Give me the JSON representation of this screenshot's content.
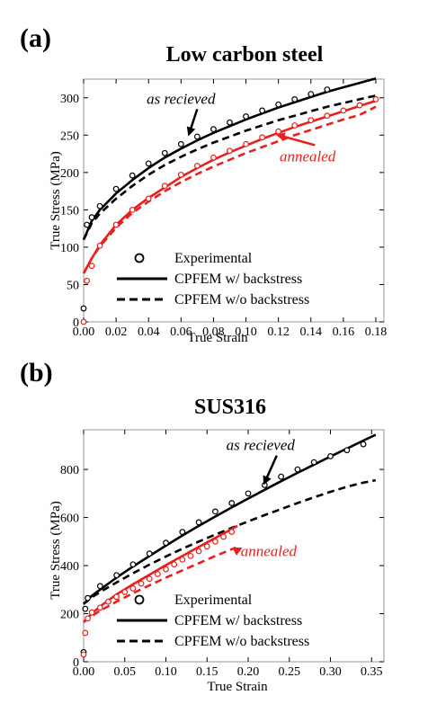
{
  "chart_data": [
    {
      "type": "line",
      "panel_label": "(a)",
      "title": "Low carbon steel",
      "xlabel": "True Strain",
      "ylabel": "True Stress (MPa)",
      "xlim": [
        0,
        0.185
      ],
      "ylim": [
        0,
        325
      ],
      "x_ticks": [
        0,
        0.02,
        0.04,
        0.06,
        0.08,
        0.1,
        0.12,
        0.14,
        0.16,
        0.18
      ],
      "x_tick_labels": [
        "0.00",
        "0.02",
        "0.04",
        "0.06",
        "0.08",
        "0.10",
        "0.12",
        "0.14",
        "0.16",
        "0.18"
      ],
      "y_ticks": [
        0,
        50,
        100,
        150,
        200,
        250,
        300
      ],
      "y_tick_labels": [
        "0",
        "50",
        "100",
        "150",
        "200",
        "250",
        "300"
      ],
      "colors": {
        "as_received": "#000000",
        "annealed": "#e8201e"
      },
      "series": [
        {
          "name": "Experimental",
          "group": "as received",
          "style": "circle",
          "color": "#000000",
          "x": [
            0,
            0.002,
            0.005,
            0.01,
            0.02,
            0.03,
            0.04,
            0.05,
            0.06,
            0.07,
            0.08,
            0.09,
            0.1,
            0.11,
            0.12,
            0.13,
            0.14,
            0.15
          ],
          "y": [
            18,
            130,
            140,
            155,
            178,
            196,
            212,
            226,
            238,
            248,
            258,
            267,
            275,
            283,
            291,
            298,
            305,
            311
          ]
        },
        {
          "name": "CPFEM w/ backstress",
          "group": "as received",
          "style": "solid",
          "color": "#000000",
          "x": [
            0,
            0.005,
            0.01,
            0.02,
            0.03,
            0.04,
            0.05,
            0.06,
            0.07,
            0.08,
            0.09,
            0.1,
            0.11,
            0.12,
            0.13,
            0.14,
            0.15,
            0.16,
            0.17,
            0.18
          ],
          "y": [
            110,
            135,
            150,
            172,
            190,
            206,
            220,
            232,
            243,
            253,
            262,
            271,
            279,
            287,
            294,
            301,
            308,
            314,
            320,
            326
          ]
        },
        {
          "name": "CPFEM w/o backstress",
          "group": "as received",
          "style": "dashed",
          "color": "#000000",
          "x": [
            0,
            0.005,
            0.01,
            0.02,
            0.03,
            0.04,
            0.05,
            0.06,
            0.07,
            0.08,
            0.09,
            0.1,
            0.11,
            0.12,
            0.13,
            0.14,
            0.15,
            0.16,
            0.17,
            0.18
          ],
          "y": [
            110,
            132,
            145,
            165,
            182,
            197,
            210,
            221,
            231,
            240,
            248,
            256,
            263,
            270,
            276,
            282,
            288,
            293,
            298,
            303
          ]
        },
        {
          "name": "Experimental",
          "group": "annealed",
          "style": "circle",
          "color": "#e8201e",
          "x": [
            0,
            0.002,
            0.005,
            0.01,
            0.02,
            0.03,
            0.04,
            0.05,
            0.06,
            0.07,
            0.08,
            0.09,
            0.1,
            0.11,
            0.12,
            0.13,
            0.14,
            0.15,
            0.16,
            0.17,
            0.18
          ],
          "y": [
            0,
            55,
            75,
            102,
            130,
            150,
            165,
            182,
            197,
            209,
            220,
            229,
            238,
            247,
            255,
            263,
            270,
            276,
            283,
            290,
            298
          ]
        },
        {
          "name": "CPFEM w/ backstress",
          "group": "annealed",
          "style": "solid",
          "color": "#e8201e",
          "x": [
            0,
            0.005,
            0.01,
            0.02,
            0.03,
            0.04,
            0.05,
            0.06,
            0.07,
            0.08,
            0.09,
            0.1,
            0.11,
            0.12,
            0.13,
            0.14,
            0.15,
            0.16,
            0.17,
            0.18
          ],
          "y": [
            65,
            85,
            103,
            130,
            150,
            166,
            180,
            194,
            206,
            217,
            227,
            236,
            245,
            253,
            261,
            268,
            275,
            282,
            289,
            296
          ]
        },
        {
          "name": "CPFEM w/o backstress",
          "group": "annealed",
          "style": "dashed",
          "color": "#e8201e",
          "x": [
            0,
            0.005,
            0.01,
            0.02,
            0.03,
            0.04,
            0.05,
            0.06,
            0.07,
            0.08,
            0.09,
            0.1,
            0.11,
            0.12,
            0.13,
            0.14,
            0.15,
            0.16,
            0.17,
            0.18
          ],
          "y": [
            65,
            85,
            101,
            126,
            146,
            161,
            175,
            187,
            198,
            208,
            217,
            226,
            234,
            242,
            250,
            257,
            264,
            271,
            277,
            288
          ]
        }
      ],
      "annotations": [
        {
          "text": "as recieved",
          "color": "#000000",
          "x": 0.06,
          "y": 292,
          "arrow_to": [
            0.065,
            252
          ]
        },
        {
          "text": "annealed",
          "color": "#e8201e",
          "x": 0.138,
          "y": 215,
          "arrow_to": [
            0.12,
            250
          ]
        }
      ],
      "legend": {
        "position": "bottom-right",
        "entries": [
          {
            "label": "Experimental",
            "style": "circle"
          },
          {
            "label": "CPFEM w/ backstress",
            "style": "solid"
          },
          {
            "label": "CPFEM w/o backstress",
            "style": "dashed"
          }
        ]
      }
    },
    {
      "type": "line",
      "panel_label": "(b)",
      "title": "SUS316",
      "xlabel": "True Strain",
      "ylabel": "True Stress (MPa)",
      "xlim": [
        0,
        0.365
      ],
      "ylim": [
        0,
        965
      ],
      "x_ticks": [
        0,
        0.05,
        0.1,
        0.15,
        0.2,
        0.25,
        0.3,
        0.35
      ],
      "x_tick_labels": [
        "0.00",
        "0.05",
        "0.10",
        "0.15",
        "0.20",
        "0.25",
        "0.30",
        "0.35"
      ],
      "y_ticks": [
        0,
        200,
        400,
        600,
        800
      ],
      "y_tick_labels": [
        "0",
        "200",
        "400",
        "600",
        "800"
      ],
      "colors": {
        "as_received": "#000000",
        "annealed": "#e8201e"
      },
      "series": [
        {
          "name": "Experimental",
          "group": "as received",
          "style": "circle",
          "color": "#000000",
          "x": [
            0,
            0.002,
            0.005,
            0.02,
            0.04,
            0.06,
            0.08,
            0.1,
            0.12,
            0.14,
            0.16,
            0.18,
            0.2,
            0.22,
            0.24,
            0.26,
            0.28,
            0.3,
            0.32,
            0.34
          ],
          "y": [
            40,
            220,
            265,
            315,
            360,
            405,
            450,
            495,
            540,
            580,
            625,
            660,
            700,
            735,
            770,
            800,
            830,
            855,
            880,
            905
          ]
        },
        {
          "name": "CPFEM w/ backstress",
          "group": "as received",
          "style": "solid",
          "color": "#000000",
          "x": [
            0,
            0.01,
            0.02,
            0.04,
            0.06,
            0.08,
            0.1,
            0.12,
            0.14,
            0.16,
            0.18,
            0.2,
            0.22,
            0.24,
            0.26,
            0.28,
            0.3,
            0.32,
            0.34,
            0.355
          ],
          "y": [
            240,
            275,
            300,
            350,
            396,
            440,
            483,
            525,
            565,
            604,
            642,
            679,
            715,
            751,
            786,
            820,
            854,
            887,
            920,
            944
          ]
        },
        {
          "name": "CPFEM w/o backstress",
          "group": "as received",
          "style": "dashed",
          "color": "#000000",
          "x": [
            0,
            0.01,
            0.02,
            0.04,
            0.06,
            0.08,
            0.1,
            0.12,
            0.14,
            0.16,
            0.18,
            0.2,
            0.22,
            0.24,
            0.26,
            0.28,
            0.3,
            0.32,
            0.34,
            0.355
          ],
          "y": [
            240,
            268,
            290,
            330,
            368,
            404,
            438,
            470,
            500,
            529,
            557,
            584,
            610,
            635,
            660,
            684,
            707,
            728,
            745,
            755
          ]
        },
        {
          "name": "Experimental",
          "group": "annealed",
          "style": "circle",
          "color": "#e8201e",
          "x": [
            0,
            0.002,
            0.005,
            0.01,
            0.02,
            0.03,
            0.04,
            0.05,
            0.06,
            0.07,
            0.08,
            0.09,
            0.1,
            0.11,
            0.12,
            0.13,
            0.14,
            0.15,
            0.16,
            0.17,
            0.18
          ],
          "y": [
            30,
            120,
            180,
            205,
            225,
            250,
            270,
            290,
            305,
            325,
            345,
            365,
            385,
            405,
            425,
            440,
            460,
            480,
            500,
            520,
            540
          ]
        },
        {
          "name": "CPFEM w/ backstress",
          "group": "annealed",
          "style": "solid",
          "color": "#e8201e",
          "x": [
            0,
            0.01,
            0.02,
            0.04,
            0.06,
            0.08,
            0.1,
            0.12,
            0.14,
            0.16,
            0.18,
            0.187
          ],
          "y": [
            165,
            200,
            230,
            280,
            322,
            362,
            402,
            440,
            478,
            515,
            552,
            565
          ]
        },
        {
          "name": "CPFEM w/o backstress",
          "group": "annealed",
          "style": "dashed",
          "color": "#e8201e",
          "x": [
            0,
            0.01,
            0.02,
            0.04,
            0.06,
            0.08,
            0.1,
            0.12,
            0.14,
            0.16,
            0.18,
            0.185
          ],
          "y": [
            165,
            190,
            212,
            250,
            285,
            318,
            350,
            380,
            410,
            440,
            468,
            475
          ]
        }
      ],
      "annotations": [
        {
          "text": "as recieved",
          "color": "#000000",
          "x": 0.215,
          "y": 880,
          "arrow_to": [
            0.22,
            745
          ]
        },
        {
          "text": "annealed",
          "color": "#e8201e",
          "x": 0.225,
          "y": 440,
          "arrow_to": [
            0.19,
            470
          ]
        }
      ],
      "legend": {
        "position": "bottom-right",
        "entries": [
          {
            "label": "Experimental",
            "style": "circle"
          },
          {
            "label": "CPFEM w/ backstress",
            "style": "solid"
          },
          {
            "label": "CPFEM w/o backstress",
            "style": "dashed"
          }
        ]
      }
    }
  ]
}
